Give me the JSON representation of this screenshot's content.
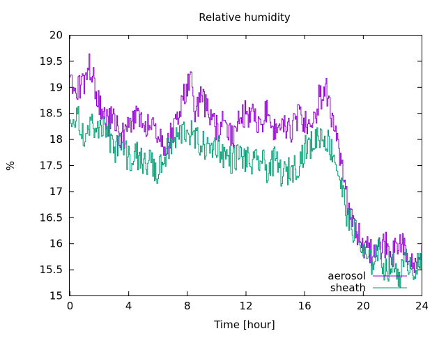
{
  "chart_data": {
    "type": "line",
    "title": "Relative humidity",
    "xlabel": "Time [hour]",
    "ylabel": "%",
    "xlim": [
      0,
      24
    ],
    "ylim": [
      15,
      20
    ],
    "x_ticks": [
      "0",
      "4",
      "8",
      "12",
      "16",
      "20",
      "24"
    ],
    "y_ticks": [
      "15",
      "15.5",
      "16",
      "16.5",
      "17",
      "17.5",
      "18",
      "18.5",
      "19",
      "19.5",
      "20"
    ],
    "grid": false,
    "legend_position": "bottom-right",
    "series": [
      {
        "name": "aerosol",
        "color": "#9400d3",
        "x": [
          0,
          0.5,
          1,
          1.2,
          1.5,
          2,
          2.5,
          3,
          3.5,
          4,
          4.5,
          5,
          5.5,
          6,
          6.5,
          7,
          7.5,
          8,
          8.3,
          8.5,
          9,
          9.5,
          10,
          10.5,
          11,
          11.5,
          12,
          12.5,
          13,
          13.5,
          14,
          14.5,
          15,
          15.5,
          16,
          16.5,
          17,
          17.5,
          18,
          18.5,
          19,
          19.5,
          20,
          20.5,
          21,
          21.5,
          22,
          22.5,
          23,
          23.5,
          24
        ],
        "y": [
          19.2,
          18.9,
          19.1,
          19.5,
          19.2,
          18.7,
          18.3,
          18.4,
          18.0,
          18.2,
          18.4,
          18.2,
          18.4,
          18.0,
          17.9,
          18.1,
          18.6,
          19.0,
          19.4,
          18.6,
          18.8,
          18.4,
          18.2,
          18.3,
          18.0,
          18.3,
          18.5,
          18.4,
          18.2,
          18.6,
          18.1,
          18.3,
          18.1,
          18.4,
          18.3,
          18.2,
          18.8,
          18.9,
          18.2,
          17.5,
          16.6,
          16.3,
          16.0,
          15.8,
          15.9,
          16.0,
          15.8,
          16.0,
          15.8,
          15.6,
          15.8
        ]
      },
      {
        "name": "sheath",
        "color": "#009e73",
        "x": [
          0,
          0.5,
          1,
          1.5,
          2,
          2.5,
          3,
          3.5,
          4,
          4.5,
          5,
          5.5,
          6,
          6.5,
          7,
          7.5,
          8,
          8.5,
          9,
          9.5,
          10,
          10.5,
          11,
          11.5,
          12,
          12.5,
          13,
          13.5,
          14,
          14.5,
          15,
          15.5,
          16,
          16.5,
          17,
          17.5,
          18,
          18.5,
          19,
          19.5,
          20,
          20.5,
          21,
          21.5,
          22,
          22.5,
          23,
          23.5,
          24
        ],
        "y": [
          18.2,
          18.4,
          18.1,
          18.3,
          18.1,
          18.2,
          17.8,
          17.9,
          17.6,
          17.7,
          17.5,
          17.6,
          17.3,
          17.7,
          17.9,
          18.1,
          18.2,
          18.0,
          17.9,
          17.8,
          17.9,
          17.7,
          17.6,
          17.7,
          17.6,
          17.5,
          17.6,
          17.4,
          17.6,
          17.3,
          17.4,
          17.5,
          17.8,
          17.9,
          18.1,
          18.0,
          17.7,
          17.1,
          16.4,
          16.2,
          15.8,
          15.6,
          15.9,
          15.5,
          15.6,
          15.4,
          15.7,
          15.5,
          15.6
        ]
      }
    ]
  }
}
